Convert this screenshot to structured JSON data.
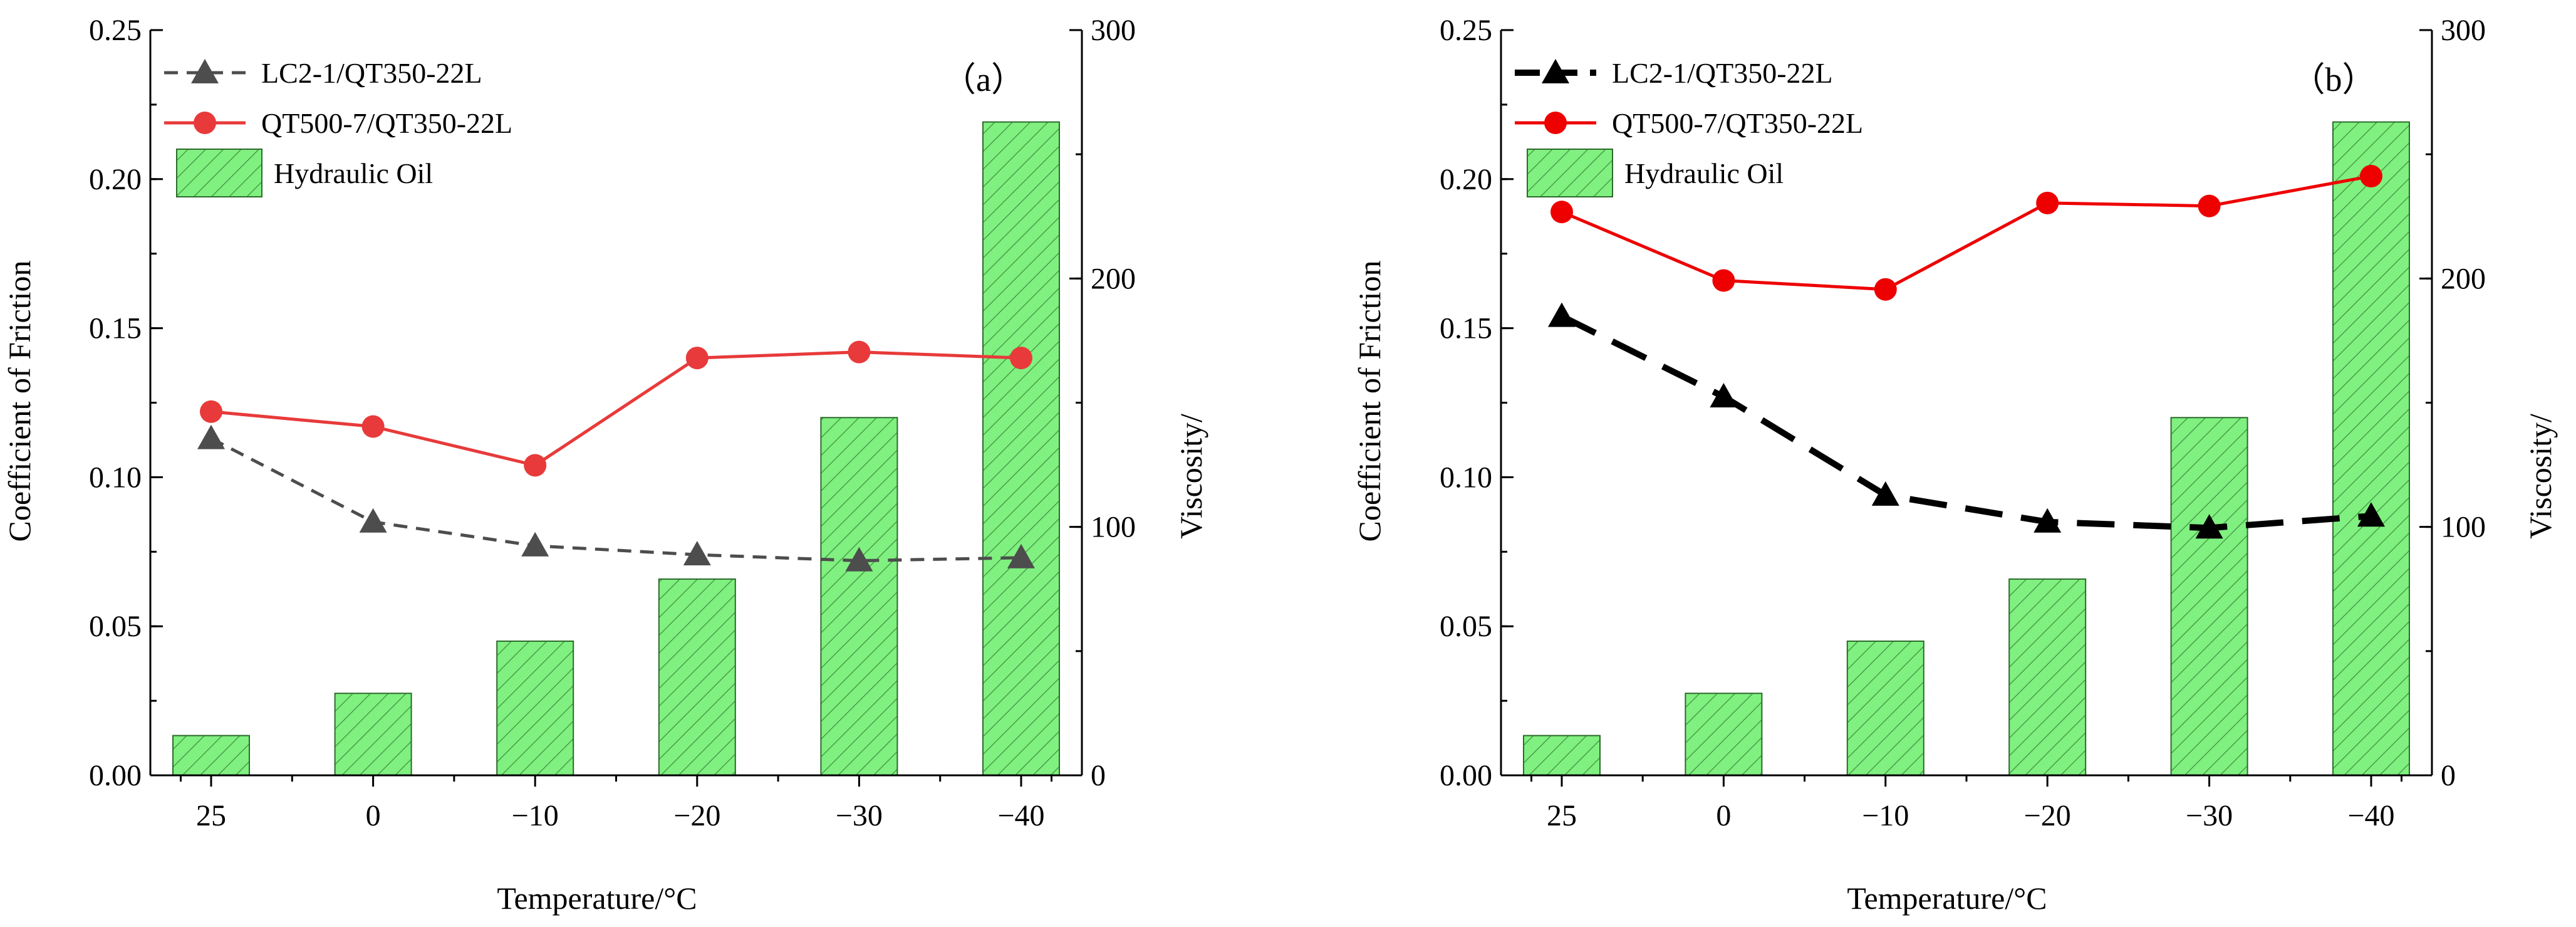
{
  "chart_data": [
    {
      "panel": "a",
      "panel_label": "（a）",
      "type": "bar+line",
      "categories": [
        "25",
        "0",
        "−10",
        "−20",
        "−30",
        "−40"
      ],
      "xlabel": "Temperature/°C",
      "ylabel": "Coefficient of Friction",
      "y2label": "Viscosity/",
      "ylim": [
        0,
        0.25
      ],
      "yticks": [
        "0.00",
        "0.05",
        "0.10",
        "0.15",
        "0.20",
        "0.25"
      ],
      "y2lim": [
        0,
        300
      ],
      "y2ticks": [
        "0",
        "100",
        "200",
        "300"
      ],
      "series": [
        {
          "name": "LC2-1/QT350-22L",
          "kind": "line",
          "style": "dashed",
          "marker": "triangle",
          "color": "#4d4d4d",
          "values": [
            0.113,
            0.085,
            0.077,
            0.074,
            0.072,
            0.073
          ]
        },
        {
          "name": "QT500-7/QT350-22L",
          "kind": "line",
          "style": "solid",
          "marker": "circle",
          "color": "#e83a3a",
          "values": [
            0.122,
            0.117,
            0.104,
            0.14,
            0.142,
            0.14
          ]
        },
        {
          "name": "Hydraulic Oil",
          "kind": "bar",
          "axis": "right",
          "color": "#7df07d",
          "values": [
            16,
            33,
            54,
            79,
            144,
            263
          ]
        }
      ]
    },
    {
      "panel": "b",
      "panel_label": "（b）",
      "type": "bar+line",
      "categories": [
        "25",
        "0",
        "−10",
        "−20",
        "−30",
        "−40"
      ],
      "xlabel": "Temperature/°C",
      "ylabel": "Coefficient of Friction",
      "y2label": "Viscosity/",
      "ylim": [
        0,
        0.25
      ],
      "yticks": [
        "0.00",
        "0.05",
        "0.10",
        "0.15",
        "0.20",
        "0.25"
      ],
      "y2lim": [
        0,
        300
      ],
      "y2ticks": [
        "0",
        "100",
        "200",
        "300"
      ],
      "series": [
        {
          "name": "LC2-1/QT350-22L",
          "kind": "line",
          "style": "dashed",
          "marker": "triangle",
          "color": "#000000",
          "values": [
            0.154,
            0.127,
            0.094,
            0.085,
            0.083,
            0.087
          ]
        },
        {
          "name": "QT500-7/QT350-22L",
          "kind": "line",
          "style": "solid",
          "marker": "circle",
          "color": "#ee0000",
          "values": [
            0.189,
            0.166,
            0.163,
            0.192,
            0.191,
            0.201
          ]
        },
        {
          "name": "Hydraulic Oil",
          "kind": "bar",
          "axis": "right",
          "color": "#7df07d",
          "values": [
            16,
            33,
            54,
            79,
            144,
            263
          ]
        }
      ]
    }
  ]
}
